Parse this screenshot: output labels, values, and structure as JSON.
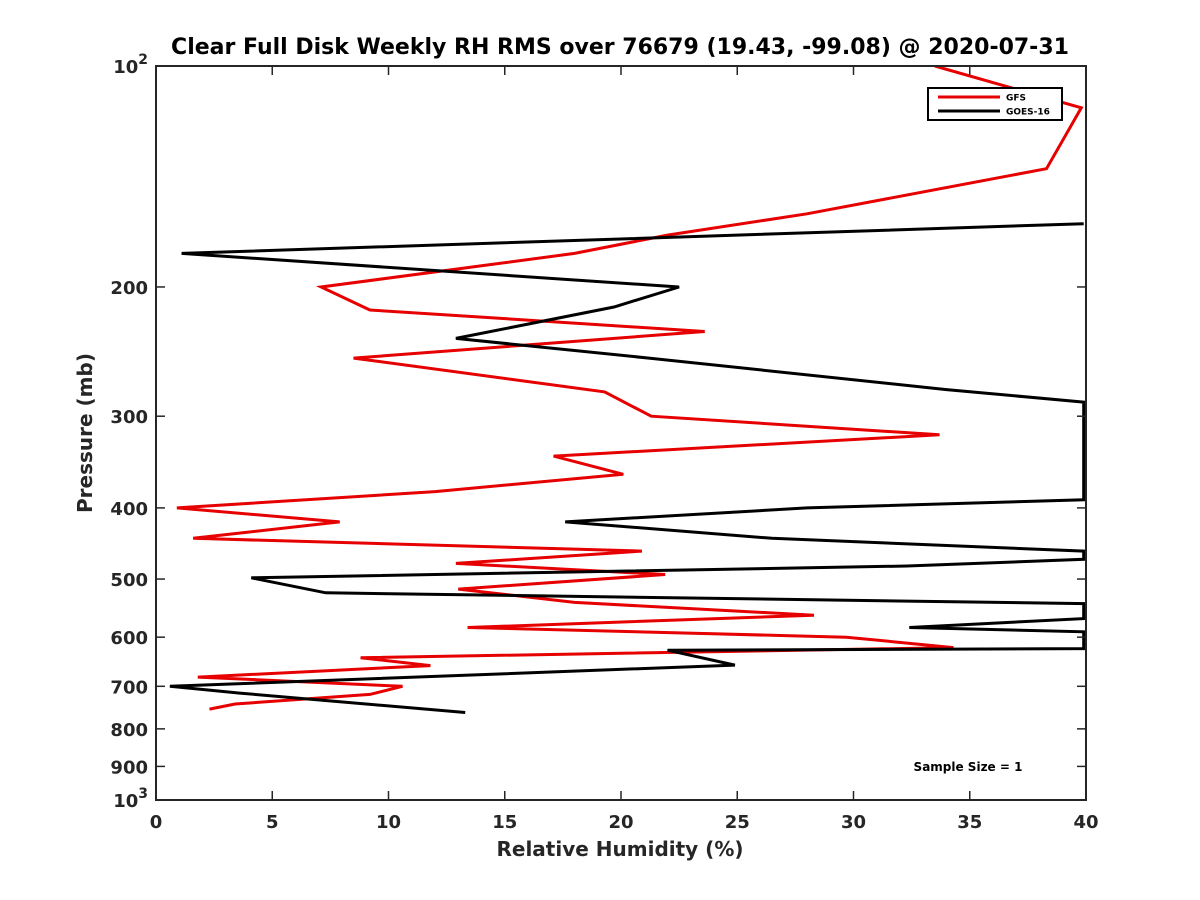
{
  "chart_data": {
    "type": "line",
    "title": "Clear Full Disk Weekly RH RMS over 76679 (19.43, -99.08) @ 2020-07-31",
    "xlabel": "Relative Humidity (%)",
    "ylabel": "Pressure (mb)",
    "xlim": [
      0,
      40
    ],
    "ylim": [
      100,
      1000
    ],
    "y_scale": "log",
    "y_reversed": true,
    "x_ticks": [
      "0",
      "5",
      "10",
      "15",
      "20",
      "25",
      "30",
      "35",
      "40"
    ],
    "y_ticks": [
      {
        "value": 100,
        "base": "10",
        "exp": "2"
      },
      {
        "value": 200,
        "label": "200"
      },
      {
        "value": 300,
        "label": "300"
      },
      {
        "value": 400,
        "label": "400"
      },
      {
        "value": 500,
        "label": "500"
      },
      {
        "value": 600,
        "label": "600"
      },
      {
        "value": 700,
        "label": "700"
      },
      {
        "value": 800,
        "label": "800"
      },
      {
        "value": 900,
        "label": "900"
      },
      {
        "value": 1000,
        "base": "10",
        "exp": "3"
      }
    ],
    "legend_position": "top-right",
    "grid": false,
    "annotation": "Sample Size = 1",
    "series": [
      {
        "name": "GFS",
        "color": "#e60000",
        "points": [
          [
            33.5,
            100
          ],
          [
            39.8,
            114
          ],
          [
            38.3,
            138
          ],
          [
            28.0,
            159
          ],
          [
            22.0,
            170
          ],
          [
            18.0,
            180
          ],
          [
            7.1,
            200
          ],
          [
            9.2,
            215
          ],
          [
            23.6,
            230
          ],
          [
            8.5,
            250
          ],
          [
            19.3,
            278
          ],
          [
            21.3,
            300
          ],
          [
            33.7,
            318
          ],
          [
            17.1,
            340
          ],
          [
            20.1,
            360
          ],
          [
            12.0,
            380
          ],
          [
            0.9,
            400
          ],
          [
            7.9,
            418
          ],
          [
            1.6,
            440
          ],
          [
            20.9,
            458
          ],
          [
            12.9,
            476
          ],
          [
            21.9,
            493
          ],
          [
            13.0,
            516
          ],
          [
            18.0,
            538
          ],
          [
            28.3,
            560
          ],
          [
            13.4,
            582
          ],
          [
            29.7,
            600
          ],
          [
            34.3,
            620
          ],
          [
            8.8,
            640
          ],
          [
            11.8,
            656
          ],
          [
            1.8,
            680
          ],
          [
            10.6,
            700
          ],
          [
            9.2,
            718
          ],
          [
            3.4,
            740
          ],
          [
            2.3,
            752
          ]
        ]
      },
      {
        "name": "GOES-16",
        "color": "#000000",
        "points": [
          [
            39.9,
            164
          ],
          [
            1.1,
            180
          ],
          [
            22.5,
            200
          ],
          [
            19.7,
            213
          ],
          [
            12.9,
            235
          ],
          [
            21.2,
            250
          ],
          [
            34.0,
            276
          ],
          [
            39.9,
            287
          ],
          [
            39.9,
            390
          ],
          [
            28.0,
            400
          ],
          [
            17.6,
            418
          ],
          [
            26.5,
            440
          ],
          [
            39.9,
            458
          ],
          [
            39.9,
            470
          ],
          [
            32.3,
            480
          ],
          [
            4.1,
            498
          ],
          [
            7.3,
            522
          ],
          [
            39.9,
            540
          ],
          [
            39.9,
            566
          ],
          [
            32.4,
            582
          ],
          [
            39.9,
            590
          ],
          [
            39.9,
            622
          ],
          [
            22.0,
            625
          ],
          [
            24.9,
            655
          ],
          [
            0.6,
            700
          ],
          [
            3.6,
            715
          ],
          [
            13.3,
            760
          ]
        ]
      }
    ]
  }
}
